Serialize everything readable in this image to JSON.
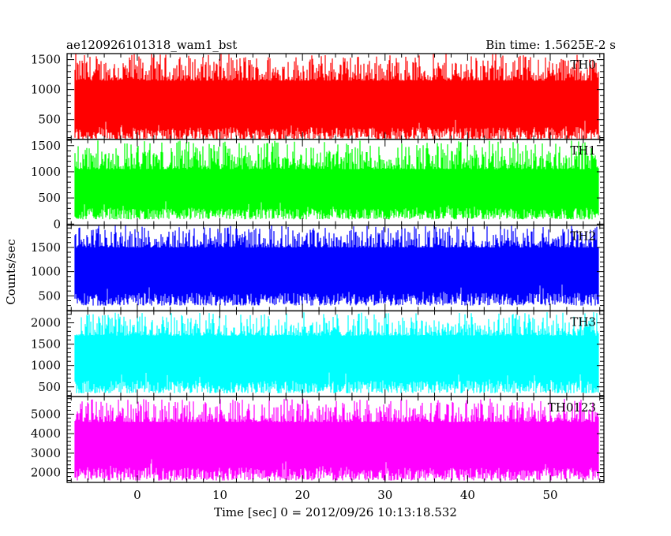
{
  "chart_data": {
    "type": "line",
    "title": "ae120926101318_wam1_bst",
    "subtitle": "Bin time: 1.5625E-2 s",
    "xlabel": "Time [sec] 0 = 2012/09/26 10:13:18.532",
    "ylabel": "Counts/sec",
    "xlim": [
      -8.5,
      56.5
    ],
    "x_ticks": [
      0,
      10,
      20,
      30,
      40,
      50
    ],
    "x_range": [
      -7.6,
      55.9
    ],
    "series": [
      {
        "name": "TH0",
        "color": "#ff0000",
        "ylim": [
          170,
          1600
        ],
        "y_ticks": [
          500,
          1000,
          1500
        ],
        "base_low": 160,
        "base_high": 1150,
        "spike_high": 1600
      },
      {
        "name": "TH1",
        "color": "#00ff00",
        "ylim": [
          -20,
          1620
        ],
        "y_ticks": [
          0,
          500,
          1000,
          1500
        ],
        "base_low": 90,
        "base_high": 1050,
        "spike_high": 1600
      },
      {
        "name": "TH2",
        "color": "#0000ff",
        "ylim": [
          190,
          1960
        ],
        "y_ticks": [
          500,
          1000,
          1500
        ],
        "base_low": 300,
        "base_high": 1500,
        "spike_high": 1950
      },
      {
        "name": "TH3",
        "color": "#00ffff",
        "ylim": [
          270,
          2280
        ],
        "y_ticks": [
          500,
          1000,
          1500,
          2000
        ],
        "base_low": 350,
        "base_high": 1700,
        "spike_high": 2250
      },
      {
        "name": "TH0123",
        "color": "#ff00ff",
        "ylim": [
          1500,
          5900
        ],
        "y_ticks": [
          2000,
          3000,
          4000,
          5000
        ],
        "base_low": 1600,
        "base_high": 4600,
        "spike_high": 5800
      }
    ]
  }
}
